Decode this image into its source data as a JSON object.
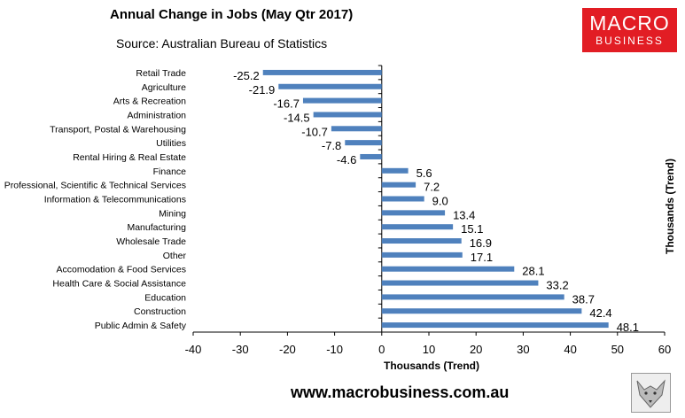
{
  "title": "Annual Change in Jobs (May Qtr 2017)",
  "subtitle": "Source: Australian Bureau of Statistics",
  "logo": {
    "line1": "MACRO",
    "line2": "BUSINESS"
  },
  "right_label": "Thousands (Trend)",
  "website": "www.macrobusiness.com.au",
  "colors": {
    "bar": "#4f81bd",
    "brand": "#e21d24"
  },
  "chart_data": {
    "type": "bar",
    "orientation": "horizontal",
    "categories": [
      "Retail Trade",
      "Agriculture",
      "Arts & Recreation",
      "Administration",
      "Transport, Postal & Warehousing",
      "Utilities",
      "Rental Hiring & Real Estate",
      "Finance",
      "Professional, Scientific & Technical Services",
      "Information & Telecommunications",
      "Mining",
      "Manufacturing",
      "Wholesale Trade",
      "Other",
      "Accomodation & Food Services",
      "Health Care & Social Assistance",
      "Education",
      "Construction",
      "Public Admin & Safety"
    ],
    "values": [
      -25.2,
      -21.9,
      -16.7,
      -14.5,
      -10.7,
      -7.8,
      -4.6,
      5.6,
      7.2,
      9.0,
      13.4,
      15.1,
      16.9,
      17.1,
      28.1,
      33.2,
      38.7,
      42.4,
      48.1
    ],
    "value_labels": [
      "-25.2",
      "-21.9",
      "-16.7",
      "-14.5",
      "-10.7",
      "-7.8",
      "-4.6",
      "5.6",
      "7.2",
      "9.0",
      "13.4",
      "15.1",
      "16.9",
      "17.1",
      "28.1",
      "33.2",
      "38.7",
      "42.4",
      "48.1"
    ],
    "xlim": [
      -40,
      60
    ],
    "xticks": [
      "-40",
      "-30",
      "-20",
      "-10",
      "0",
      "10",
      "20",
      "30",
      "40",
      "50",
      "60"
    ],
    "xlabel": "Thousands (Trend)",
    "grid": false,
    "legend": "none"
  }
}
